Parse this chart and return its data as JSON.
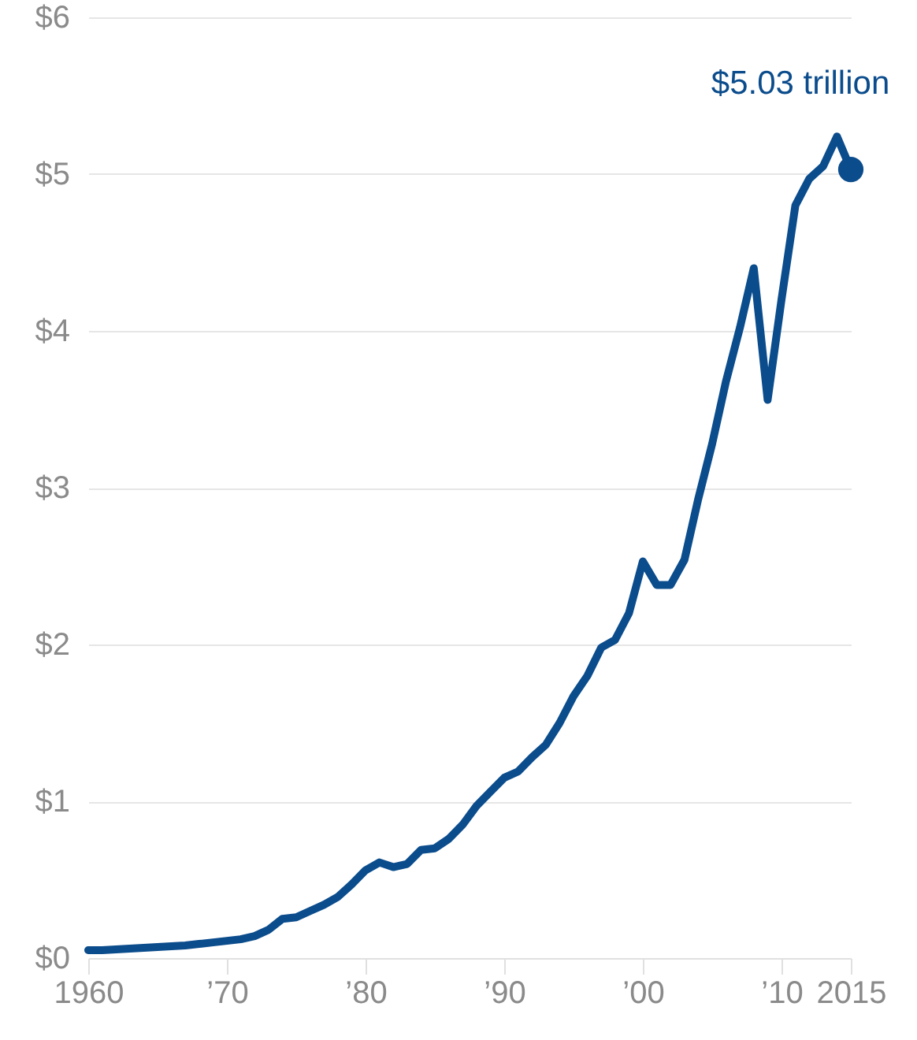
{
  "chart_data": {
    "type": "line",
    "xlim": [
      1960,
      2015
    ],
    "ylim": [
      0,
      6
    ],
    "xticks": [
      1960,
      {
        "value": 1970,
        "label": "’70"
      },
      {
        "value": 1980,
        "label": "’80"
      },
      {
        "value": 1990,
        "label": "’90"
      },
      {
        "value": 2000,
        "label": "’00"
      },
      {
        "value": 2010,
        "label": "’10"
      },
      2015
    ],
    "yticks": [
      {
        "value": 0,
        "label": "$0"
      },
      {
        "value": 1,
        "label": "$1"
      },
      {
        "value": 2,
        "label": "$2"
      },
      {
        "value": 3,
        "label": "$3"
      },
      {
        "value": 4,
        "label": "$4"
      },
      {
        "value": 5,
        "label": "$5"
      },
      {
        "value": 6,
        "label": "$6"
      }
    ],
    "grid": "y",
    "line_style": "solid",
    "x": [
      1960,
      1961,
      1962,
      1963,
      1964,
      1965,
      1966,
      1967,
      1968,
      1969,
      1970,
      1971,
      1972,
      1973,
      1974,
      1975,
      1976,
      1977,
      1978,
      1979,
      1980,
      1981,
      1982,
      1983,
      1984,
      1985,
      1986,
      1987,
      1988,
      1989,
      1990,
      1991,
      1992,
      1993,
      1994,
      1995,
      1996,
      1997,
      1998,
      1999,
      2000,
      2001,
      2002,
      2003,
      2004,
      2005,
      2006,
      2007,
      2008,
      2009,
      2010,
      2011,
      2012,
      2013,
      2014,
      2015
    ],
    "series": [
      {
        "color": "#0b4c8c",
        "marker": "none",
        "values": [
          0.05,
          0.05,
          0.055,
          0.06,
          0.065,
          0.07,
          0.075,
          0.08,
          0.09,
          0.1,
          0.11,
          0.12,
          0.14,
          0.18,
          0.25,
          0.26,
          0.3,
          0.34,
          0.39,
          0.47,
          0.56,
          0.61,
          0.58,
          0.6,
          0.69,
          0.7,
          0.76,
          0.85,
          0.97,
          1.06,
          1.15,
          1.19,
          1.28,
          1.36,
          1.5,
          1.67,
          1.8,
          1.98,
          2.03,
          2.2,
          2.53,
          2.38,
          2.38,
          2.54,
          2.93,
          3.28,
          3.68,
          4.02,
          4.4,
          3.56,
          4.2,
          4.8,
          4.97,
          5.05,
          5.24,
          5.03
        ]
      },
      {
        "type": "scatter",
        "marker": "circle",
        "color": "#0b4c8c",
        "x": [
          2015
        ],
        "values": [
          5.03
        ]
      }
    ],
    "annotations": [
      {
        "text": "$5.03 trillion",
        "x": 2015,
        "y": 5.03
      }
    ]
  }
}
